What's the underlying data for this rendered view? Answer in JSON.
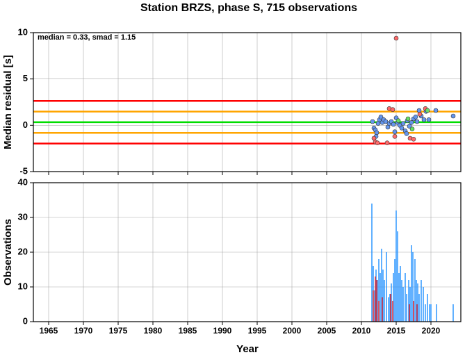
{
  "chart_data": [
    {
      "type": "scatter",
      "title": "Station BRZS, phase S, 715 observations",
      "ylabel": "Median residual [s]",
      "annotation": "median = 0.33, smad = 1.15",
      "ylim": [
        -5,
        10
      ],
      "yticks": [
        -5,
        0,
        5,
        10
      ],
      "grid": true,
      "hlines": [
        {
          "value": 2.63,
          "color": "#ff0000"
        },
        {
          "value": 1.48,
          "color": "#ffa500"
        },
        {
          "value": 0.33,
          "color": "#00dd00"
        },
        {
          "value": -0.82,
          "color": "#ffa500"
        },
        {
          "value": -1.97,
          "color": "#ff0000"
        }
      ],
      "series": [
        {
          "color": "#6495ed",
          "x": [
            2011.6,
            2011.8,
            2012.0,
            2012.2,
            2012.4,
            2012.6,
            2012.8,
            2013.0,
            2013.2,
            2013.5,
            2013.8,
            2014.0,
            2014.3,
            2014.6,
            2014.8,
            2015.0,
            2015.2,
            2015.5,
            2015.8,
            2016.0,
            2016.3,
            2016.6,
            2016.9,
            2017.2,
            2017.5,
            2017.8,
            2018.0,
            2018.3,
            2018.6,
            2019.0,
            2019.3,
            2019.7,
            2020.7,
            2023.2,
            2012.1,
            2016.5
          ],
          "values": [
            0.4,
            -0.3,
            -0.5,
            -0.8,
            0.2,
            0.6,
            0.9,
            0.3,
            0.6,
            0.4,
            -0.2,
            0.2,
            0.4,
            0.1,
            -0.7,
            0.8,
            0.3,
            0.0,
            -0.3,
            0.2,
            -0.6,
            0.5,
            -0.1,
            0.3,
            0.7,
            0.9,
            0.4,
            1.6,
            1.0,
            0.6,
            1.5,
            0.6,
            1.6,
            1.0,
            -1.2,
            -0.9
          ]
        },
        {
          "color": "#ff6a6a",
          "x": [
            2015.0,
            2014.0,
            2014.5,
            2011.8,
            2012.0,
            2012.3,
            2013.7,
            2014.8,
            2017.0,
            2017.5,
            2019.2,
            2018.4
          ],
          "values": [
            9.4,
            1.8,
            1.7,
            -1.4,
            -1.8,
            -1.9,
            -1.9,
            -1.2,
            -1.4,
            -1.5,
            1.8,
            1.2
          ]
        },
        {
          "color": "#66dd66",
          "x": [
            2015.3,
            2016.7,
            2019.5,
            2017.3
          ],
          "values": [
            0.5,
            0.7,
            1.6,
            -0.4
          ]
        }
      ]
    },
    {
      "type": "bar",
      "ylabel": "Observations",
      "xlabel": "Year",
      "xlim": [
        1962.8,
        2024.3
      ],
      "xticks": [
        1965,
        1970,
        1975,
        1980,
        1985,
        1990,
        1995,
        2000,
        2005,
        2010,
        2015,
        2020
      ],
      "ylim": [
        0,
        40
      ],
      "yticks": [
        0,
        10,
        20,
        30,
        40
      ],
      "grid": true,
      "series": [
        {
          "color": "#1e90ff",
          "x": [
            2011.5,
            2011.7,
            2011.9,
            2012.1,
            2012.3,
            2012.5,
            2012.7,
            2012.9,
            2013.1,
            2013.3,
            2013.6,
            2013.9,
            2014.1,
            2014.3,
            2014.6,
            2014.8,
            2015.0,
            2015.2,
            2015.4,
            2015.6,
            2015.8,
            2016.0,
            2016.3,
            2016.5,
            2016.8,
            2017.0,
            2017.2,
            2017.4,
            2017.7,
            2017.9,
            2018.1,
            2018.3,
            2018.6,
            2018.9,
            2019.2,
            2019.5,
            2019.8,
            2020.0,
            2020.8,
            2023.2
          ],
          "values": [
            34,
            16,
            9,
            15,
            12,
            18,
            14,
            21,
            15,
            12,
            20,
            7,
            8,
            11,
            14,
            18,
            32,
            26,
            14,
            16,
            12,
            10,
            14,
            8,
            12,
            10,
            22,
            20,
            18,
            12,
            11,
            8,
            12,
            10,
            5,
            8,
            5,
            5,
            5,
            5
          ]
        },
        {
          "color": "#ee2222",
          "x": [
            2011.7,
            2012.0,
            2012.2,
            2012.5,
            2013.0,
            2014.2,
            2014.5,
            2016.9,
            2017.5,
            2018.0
          ],
          "values": [
            9,
            13,
            12,
            6,
            7,
            8,
            6,
            5,
            6,
            5
          ]
        }
      ]
    }
  ]
}
